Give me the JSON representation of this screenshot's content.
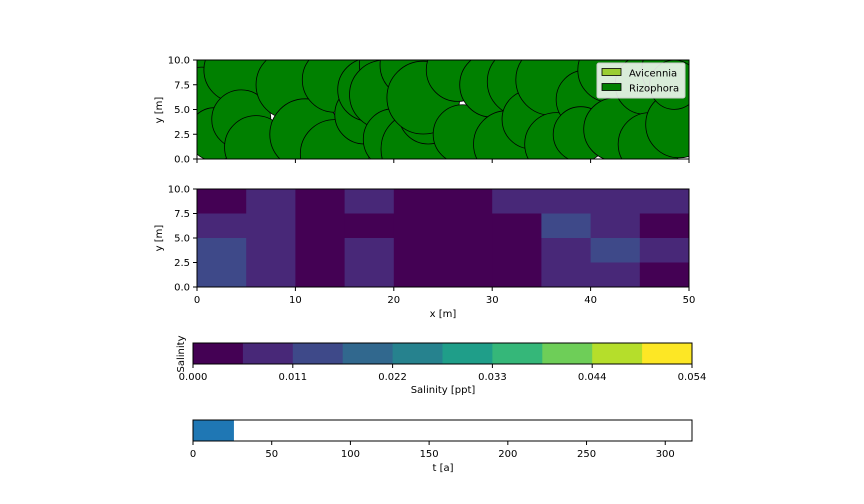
{
  "panels": {
    "trees": {
      "ylabel": "y [m]",
      "xlim": [
        0,
        50
      ],
      "ylim": [
        0,
        10
      ],
      "yticks": [
        "0.0",
        "2.5",
        "5.0",
        "7.5",
        "10.0"
      ],
      "legend": {
        "placement": "top-right",
        "items": [
          {
            "label": "Avicennia",
            "color": "#9acd32"
          },
          {
            "label": "Rizophora",
            "color": "#008000"
          }
        ]
      }
    },
    "salinity_map": {
      "xlabel": "x [m]",
      "ylabel": "y [m]",
      "xticks": [
        "0",
        "10",
        "20",
        "30",
        "40",
        "50"
      ],
      "yticks": [
        "0.0",
        "2.5",
        "5.0",
        "7.5",
        "10.0"
      ]
    },
    "colorbar": {
      "side_label": "Salinity",
      "xlabel": "Salinity [ppt]",
      "ticks": [
        "0.000",
        "0.011",
        "0.022",
        "0.033",
        "0.044",
        "0.054"
      ],
      "colors": [
        "#440154",
        "#482878",
        "#3e4989",
        "#31688e",
        "#26828e",
        "#1f9e89",
        "#35b779",
        "#6ece58",
        "#b5de2b",
        "#fde725"
      ]
    },
    "time": {
      "xlabel": "t [a]",
      "xticks": [
        "0",
        "50",
        "100",
        "150",
        "200",
        "250",
        "300"
      ],
      "xlim": [
        0,
        317
      ],
      "progress_value": 26,
      "bar_color": "#1f77b4"
    }
  },
  "chart_data": [
    {
      "type": "scatter",
      "description": "tree crowns (circles), x/y in m, r = crown radius in m",
      "xlim": [
        0,
        50
      ],
      "ylim": [
        0,
        10
      ],
      "series": [
        {
          "name": "Avicennia",
          "points": []
        },
        {
          "name": "Rizophora",
          "points": [
            [
              1.5,
              9.5,
              3.2
            ],
            [
              0.5,
              6.5,
              2.8
            ],
            [
              1.8,
              2.5,
              2.7
            ],
            [
              4.0,
              9.0,
              3.3
            ],
            [
              4.5,
              4.0,
              3.0
            ],
            [
              6.0,
              1.2,
              3.2
            ],
            [
              9.5,
              7.5,
              3.5
            ],
            [
              11.0,
              2.5,
              3.6
            ],
            [
              14.0,
              8.0,
              3.3
            ],
            [
              14.0,
              0.5,
              3.5
            ],
            [
              17.0,
              4.5,
              3.0
            ],
            [
              17.5,
              7.0,
              3.2
            ],
            [
              19.5,
              9.5,
              3.0
            ],
            [
              19.0,
              6.5,
              3.5
            ],
            [
              20.0,
              2.0,
              3.1
            ],
            [
              22.0,
              9.5,
              3.4
            ],
            [
              23.0,
              2.0,
              3.5
            ],
            [
              22.5,
              1.0,
              3.8
            ],
            [
              23.5,
              4.5,
              3.0
            ],
            [
              23.0,
              6.2,
              3.7
            ],
            [
              26.5,
              9.0,
              3.2
            ],
            [
              27.0,
              2.5,
              3.0
            ],
            [
              30.0,
              7.5,
              3.3
            ],
            [
              31.5,
              1.5,
              3.4
            ],
            [
              33.0,
              7.8,
              3.5
            ],
            [
              34.0,
              4.0,
              3.0
            ],
            [
              36.0,
              8.0,
              3.6
            ],
            [
              36.5,
              1.5,
              3.2
            ],
            [
              39.5,
              6.0,
              3.0
            ],
            [
              39.0,
              2.5,
              2.8
            ],
            [
              42.0,
              9.0,
              3.3
            ],
            [
              42.5,
              3.0,
              3.2
            ],
            [
              45.5,
              7.5,
              3.0
            ],
            [
              46.0,
              1.5,
              3.2
            ],
            [
              48.5,
              9.0,
              3.3
            ],
            [
              49.0,
              3.5,
              3.4
            ],
            [
              48.5,
              7.5,
              2.5
            ]
          ]
        }
      ]
    },
    {
      "type": "heatmap",
      "description": "filled contour of salinity; columns x = 0..50 step 5, rows y = 0..10 step 2.5, values as colour level index (0 = darkest)",
      "x": [
        0,
        5,
        10,
        15,
        20,
        25,
        30,
        35,
        40,
        45,
        50
      ],
      "y": [
        0,
        2.5,
        5,
        7.5,
        10
      ],
      "levels": [
        [
          2,
          1,
          0,
          1,
          0,
          0,
          0,
          1,
          1,
          0,
          1
        ],
        [
          2,
          1,
          0,
          1,
          0,
          0,
          0,
          1,
          2,
          1,
          0
        ],
        [
          1,
          1,
          0,
          0,
          0,
          0,
          0,
          2,
          1,
          0,
          0
        ],
        [
          0,
          1,
          0,
          1,
          0,
          0,
          1,
          1,
          1,
          1,
          0
        ],
        [
          0,
          1,
          0,
          0,
          1,
          0,
          0,
          1,
          1,
          0,
          1
        ]
      ]
    }
  ]
}
